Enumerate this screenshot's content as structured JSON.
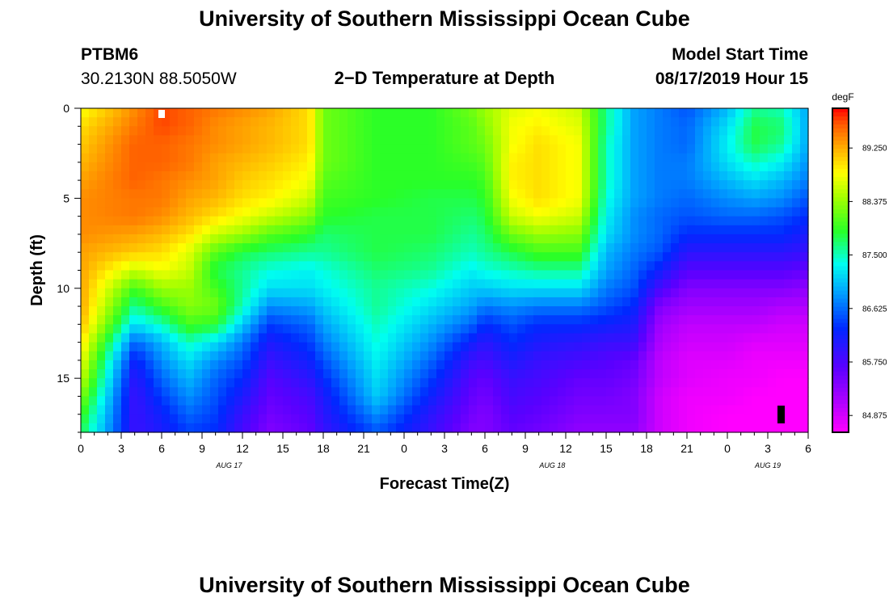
{
  "header": {
    "title": "University of Southern Mississippi Ocean Cube",
    "footer_title": "University of Southern Mississippi Ocean Cube",
    "station_id": "PTBM6",
    "location": "30.2130N 88.5050W",
    "plot_title": "2−D Temperature at Depth",
    "model_start_label": "Model Start Time",
    "model_start_value": "08/17/2019 Hour 15"
  },
  "chart_data": {
    "type": "heatmap",
    "title": "2-D Temperature at Depth",
    "xlabel": "Forecast Time(Z)",
    "ylabel": "Depth (ft)",
    "colorbar_unit": "degF",
    "x_ticks": [
      "0",
      "3",
      "6",
      "9",
      "12",
      "15",
      "18",
      "21",
      "0",
      "3",
      "6",
      "9",
      "12",
      "15",
      "18",
      "21",
      "0",
      "3",
      "6"
    ],
    "x_range_hours": [
      0,
      54
    ],
    "date_labels": [
      {
        "text": "AUG 17",
        "hour": 11
      },
      {
        "text": "AUG 18",
        "hour": 35
      },
      {
        "text": "AUG 19",
        "hour": 51
      }
    ],
    "y_ticks": [
      0,
      5,
      10,
      15
    ],
    "ylim": [
      0,
      18
    ],
    "y_inverted": true,
    "colorbar_ticks": [
      "89.250",
      "88.375",
      "87.500",
      "86.625",
      "85.750",
      "84.875"
    ],
    "colorbar_range": [
      84.6,
      89.9
    ],
    "depth_levels_ft": [
      0,
      1,
      2,
      3,
      4,
      5,
      6,
      7,
      8,
      9,
      10,
      11,
      12,
      13,
      14,
      15,
      16,
      17,
      18
    ],
    "time_keys_hours": [
      0,
      4,
      6,
      8,
      10,
      12,
      14,
      17,
      18,
      22,
      26,
      29,
      30,
      32,
      34,
      37,
      39,
      41,
      43,
      45,
      48,
      50,
      52,
      54
    ],
    "profiles_degF": [
      [
        88.8,
        89.0,
        89.1,
        89.2,
        89.3,
        89.4,
        89.4,
        89.4,
        89.3,
        89.3,
        89.3,
        89.3,
        89.2,
        89.0,
        88.8,
        88.6,
        88.3,
        88.0,
        87.8
      ],
      [
        89.4,
        89.5,
        89.6,
        89.6,
        89.6,
        89.5,
        89.5,
        89.3,
        89.1,
        88.6,
        88.0,
        87.6,
        87.2,
        86.6,
        86.2,
        86.0,
        85.9,
        85.9,
        85.9
      ],
      [
        89.7,
        89.7,
        89.6,
        89.6,
        89.5,
        89.5,
        89.4,
        89.2,
        89.0,
        88.8,
        88.4,
        88.0,
        87.5,
        87.0,
        86.8,
        86.6,
        86.4,
        86.2,
        86.1
      ],
      [
        89.6,
        89.6,
        89.5,
        89.5,
        89.4,
        89.3,
        89.2,
        89.0,
        88.7,
        88.6,
        88.4,
        88.3,
        88.0,
        87.5,
        87.2,
        87.0,
        86.8,
        86.6,
        86.4
      ],
      [
        89.5,
        89.4,
        89.4,
        89.3,
        89.3,
        89.2,
        89.0,
        88.6,
        88.1,
        87.8,
        88.0,
        88.2,
        87.9,
        87.2,
        86.8,
        86.6,
        86.5,
        86.4,
        86.3
      ],
      [
        89.4,
        89.3,
        89.3,
        89.2,
        89.1,
        89.0,
        88.8,
        88.4,
        87.8,
        87.6,
        87.6,
        87.5,
        87.1,
        86.7,
        86.5,
        86.3,
        86.1,
        85.9,
        85.8
      ],
      [
        89.3,
        89.2,
        89.2,
        89.1,
        89.0,
        88.9,
        88.6,
        88.1,
        87.7,
        87.4,
        87.2,
        86.8,
        86.4,
        86.1,
        85.9,
        85.7,
        85.6,
        85.5,
        85.4
      ],
      [
        89.0,
        89.0,
        89.0,
        88.9,
        88.8,
        88.6,
        88.3,
        87.9,
        87.6,
        87.3,
        87.2,
        86.9,
        86.6,
        86.4,
        86.2,
        86.0,
        85.8,
        85.7,
        85.6
      ],
      [
        88.2,
        88.2,
        88.2,
        88.2,
        88.1,
        88.0,
        87.9,
        87.7,
        87.6,
        87.4,
        87.3,
        87.1,
        86.9,
        86.7,
        86.5,
        86.3,
        86.1,
        86.0,
        85.9
      ],
      [
        87.9,
        87.9,
        87.9,
        87.9,
        87.9,
        87.9,
        87.8,
        87.8,
        87.8,
        87.7,
        87.6,
        87.6,
        87.5,
        87.4,
        87.3,
        87.2,
        87.1,
        86.8,
        86.5
      ],
      [
        87.9,
        87.9,
        87.9,
        87.9,
        87.9,
        87.8,
        87.8,
        87.8,
        87.7,
        87.6,
        87.4,
        87.2,
        87.0,
        86.8,
        86.6,
        86.4,
        86.2,
        86.0,
        85.9
      ],
      [
        88.2,
        88.1,
        88.1,
        88.0,
        87.9,
        87.8,
        87.7,
        87.6,
        87.5,
        87.3,
        87.1,
        86.9,
        86.6,
        86.2,
        85.9,
        85.7,
        85.6,
        85.5,
        85.4
      ],
      [
        88.4,
        88.3,
        88.2,
        88.1,
        88.0,
        87.9,
        87.8,
        87.7,
        87.6,
        87.4,
        87.1,
        86.7,
        86.3,
        86.0,
        85.8,
        85.6,
        85.5,
        85.4,
        85.4
      ],
      [
        88.7,
        88.8,
        88.8,
        88.9,
        88.9,
        88.8,
        88.6,
        88.2,
        87.8,
        87.5,
        87.2,
        86.8,
        86.5,
        86.3,
        86.1,
        85.9,
        85.8,
        85.7,
        85.6
      ],
      [
        88.8,
        88.9,
        89.0,
        89.0,
        89.0,
        89.0,
        88.8,
        88.4,
        88.0,
        87.6,
        87.2,
        86.7,
        86.3,
        86.1,
        85.9,
        85.8,
        85.7,
        85.6,
        85.5
      ],
      [
        88.6,
        88.7,
        88.8,
        88.8,
        88.8,
        88.8,
        88.6,
        88.3,
        88.0,
        87.6,
        87.2,
        86.7,
        86.3,
        86.0,
        85.8,
        85.6,
        85.5,
        85.4,
        85.3
      ],
      [
        87.6,
        87.6,
        87.5,
        87.5,
        87.5,
        87.4,
        87.3,
        87.2,
        87.0,
        86.9,
        86.7,
        86.5,
        86.2,
        85.9,
        85.7,
        85.6,
        85.5,
        85.4,
        85.3
      ],
      [
        86.9,
        86.9,
        86.9,
        86.9,
        86.9,
        86.9,
        86.8,
        86.8,
        86.7,
        86.6,
        86.5,
        86.3,
        86.1,
        85.9,
        85.6,
        85.5,
        85.4,
        85.4,
        85.3
      ],
      [
        86.7,
        86.7,
        86.7,
        86.7,
        86.7,
        86.7,
        86.6,
        86.6,
        86.5,
        86.2,
        85.8,
        85.4,
        85.2,
        85.1,
        85.0,
        85.0,
        84.9,
        84.9,
        84.9
      ],
      [
        86.5,
        86.6,
        86.6,
        86.7,
        86.7,
        86.6,
        86.5,
        86.3,
        86.0,
        85.7,
        85.4,
        85.2,
        85.0,
        84.9,
        84.8,
        84.8,
        84.7,
        84.7,
        84.7
      ],
      [
        87.0,
        87.2,
        87.3,
        87.2,
        87.0,
        86.8,
        86.6,
        86.3,
        86.0,
        85.7,
        85.4,
        85.2,
        85.0,
        84.9,
        84.8,
        84.7,
        84.7,
        84.6,
        84.6
      ],
      [
        87.6,
        87.8,
        87.8,
        87.5,
        87.2,
        86.9,
        86.6,
        86.3,
        86.0,
        85.7,
        85.4,
        85.2,
        85.0,
        84.8,
        84.7,
        84.7,
        84.6,
        84.6,
        84.6
      ],
      [
        87.5,
        87.7,
        87.6,
        87.3,
        87.0,
        86.8,
        86.5,
        86.3,
        86.0,
        85.7,
        85.4,
        85.1,
        84.9,
        84.8,
        84.7,
        84.6,
        84.6,
        84.6,
        84.6
      ],
      [
        86.9,
        86.9,
        86.9,
        86.8,
        86.7,
        86.5,
        86.3,
        86.1,
        85.9,
        85.6,
        85.3,
        85.1,
        84.9,
        84.8,
        84.7,
        84.6,
        84.6,
        84.6,
        84.6
      ]
    ]
  }
}
